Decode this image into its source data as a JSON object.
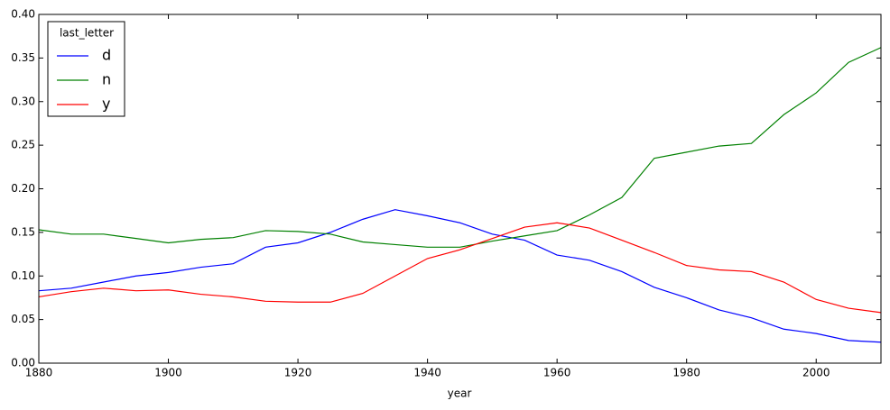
{
  "chart_data": {
    "type": "line",
    "x_label": "year",
    "legend_title": "last_letter",
    "legend": "upper left",
    "x": [
      1880,
      1885,
      1890,
      1895,
      1900,
      1905,
      1910,
      1915,
      1920,
      1925,
      1930,
      1935,
      1940,
      1945,
      1950,
      1955,
      1960,
      1965,
      1970,
      1975,
      1980,
      1985,
      1990,
      1995,
      2000,
      2005,
      2010
    ],
    "series": [
      {
        "name": "d",
        "color": "#0000ff",
        "values": [
          0.083,
          0.086,
          0.093,
          0.1,
          0.104,
          0.11,
          0.114,
          0.133,
          0.138,
          0.15,
          0.165,
          0.176,
          0.169,
          0.161,
          0.148,
          0.141,
          0.124,
          0.118,
          0.105,
          0.087,
          0.075,
          0.061,
          0.052,
          0.039,
          0.034,
          0.026,
          0.024
        ]
      },
      {
        "name": "n",
        "color": "#008000",
        "values": [
          0.153,
          0.148,
          0.148,
          0.143,
          0.138,
          0.142,
          0.144,
          0.152,
          0.151,
          0.148,
          0.139,
          0.136,
          0.133,
          0.133,
          0.14,
          0.146,
          0.152,
          0.17,
          0.19,
          0.235,
          0.242,
          0.249,
          0.252,
          0.285,
          0.31,
          0.345,
          0.362
        ]
      },
      {
        "name": "y",
        "color": "#ff0000",
        "values": [
          0.076,
          0.082,
          0.086,
          0.083,
          0.084,
          0.079,
          0.076,
          0.071,
          0.07,
          0.07,
          0.08,
          0.1,
          0.12,
          0.13,
          0.143,
          0.156,
          0.161,
          0.155,
          0.141,
          0.127,
          0.112,
          0.107,
          0.105,
          0.093,
          0.073,
          0.063,
          0.058
        ]
      }
    ],
    "xlim": [
      1880,
      2010
    ],
    "xticks": [
      1880,
      1900,
      1920,
      1940,
      1960,
      1980,
      2000
    ],
    "ylim": [
      0,
      0.4
    ],
    "yticks": [
      {
        "value": 0,
        "label": "0.00"
      },
      0.05,
      {
        "value": 0.1,
        "label": "0.10"
      },
      0.15,
      {
        "value": 0.2,
        "label": "0.20"
      },
      0.25,
      {
        "value": 0.3,
        "label": "0.30"
      },
      0.35,
      {
        "value": 0.4,
        "label": "0.40"
      }
    ]
  }
}
